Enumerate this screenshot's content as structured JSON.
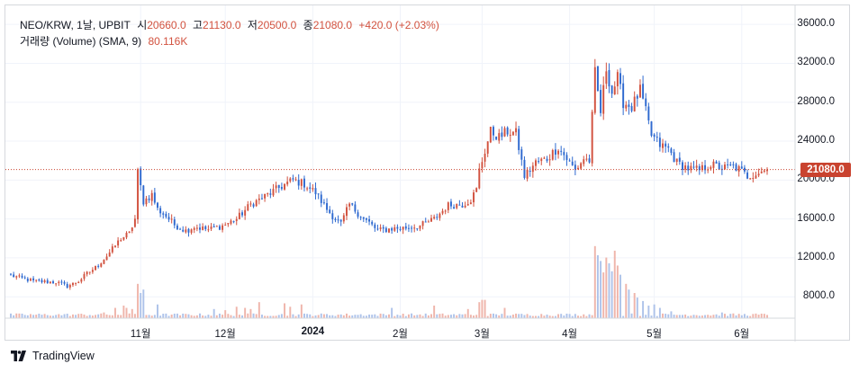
{
  "legend": {
    "symbol": "NEO/KRW, 1날, UPBIT",
    "open_label": "시",
    "open": "20660.0",
    "high_label": "고",
    "high": "21130.0",
    "low_label": "저",
    "low": "20500.0",
    "close_label": "종",
    "close": "21080.0",
    "change": "+420.0 (+2.03%)",
    "volume_label": "거래량 (Volume) (SMA, 9)",
    "volume_value": "80.116K"
  },
  "brand": "TradingView",
  "colors": {
    "up": "#d2523f",
    "down": "#2f6ad0",
    "up_vol": "#efb5ab",
    "down_vol": "#aec3ea",
    "price_line": "#c9432f"
  },
  "chart_data": {
    "type": "candlestick",
    "title": "NEO/KRW, 1날, UPBIT",
    "yticks": [
      8000,
      12000,
      16000,
      20000,
      24000,
      28000,
      32000,
      36000
    ],
    "ytick_labels": [
      "8000.0",
      "12000.0",
      "16000.0",
      "20000.0",
      "24000.0",
      "28000.0",
      "32000.0",
      "36000.0"
    ],
    "ylim": [
      5800,
      37400
    ],
    "current_price": 21080,
    "current_price_label": "21080.0",
    "xticks": [
      {
        "label": "11월",
        "day": 46,
        "bold": false
      },
      {
        "label": "12월",
        "day": 76,
        "bold": false
      },
      {
        "label": "2024",
        "day": 107,
        "bold": true
      },
      {
        "label": "2월",
        "day": 138,
        "bold": false
      },
      {
        "label": "3월",
        "day": 167,
        "bold": false
      },
      {
        "label": "4월",
        "day": 198,
        "bold": false
      },
      {
        "label": "5월",
        "day": 228,
        "bold": false
      },
      {
        "label": "6월",
        "day": 259,
        "bold": false
      }
    ],
    "day_range": [
      0,
      268
    ],
    "close_anchors": [
      [
        0,
        10200
      ],
      [
        8,
        9600
      ],
      [
        16,
        9500
      ],
      [
        20,
        9100
      ],
      [
        24,
        9600
      ],
      [
        27,
        10400
      ],
      [
        30,
        11000
      ],
      [
        34,
        12200
      ],
      [
        36,
        12900
      ],
      [
        39,
        14000
      ],
      [
        42,
        14500
      ],
      [
        44,
        16000
      ],
      [
        45,
        20800
      ],
      [
        47,
        17800
      ],
      [
        50,
        18500
      ],
      [
        52,
        17000
      ],
      [
        55,
        16300
      ],
      [
        58,
        15400
      ],
      [
        62,
        14800
      ],
      [
        65,
        15200
      ],
      [
        70,
        14900
      ],
      [
        75,
        15300
      ],
      [
        80,
        16000
      ],
      [
        85,
        17500
      ],
      [
        90,
        18300
      ],
      [
        95,
        19200
      ],
      [
        100,
        20000
      ],
      [
        104,
        19600
      ],
      [
        108,
        18700
      ],
      [
        112,
        17000
      ],
      [
        115,
        16000
      ],
      [
        117,
        15500
      ],
      [
        120,
        17500
      ],
      [
        125,
        16000
      ],
      [
        127,
        15600
      ],
      [
        130,
        14800
      ],
      [
        135,
        15000
      ],
      [
        140,
        15100
      ],
      [
        145,
        15300
      ],
      [
        150,
        16000
      ],
      [
        155,
        17400
      ],
      [
        160,
        17500
      ],
      [
        163,
        18000
      ],
      [
        165,
        19000
      ],
      [
        166,
        21000
      ],
      [
        168,
        23000
      ],
      [
        170,
        25000
      ],
      [
        173,
        24400
      ],
      [
        176,
        25000
      ],
      [
        179,
        24800
      ],
      [
        182,
        20400
      ],
      [
        186,
        21800
      ],
      [
        190,
        22200
      ],
      [
        194,
        23400
      ],
      [
        196,
        22600
      ],
      [
        198,
        21800
      ],
      [
        200,
        21000
      ],
      [
        203,
        22200
      ],
      [
        205,
        22000
      ],
      [
        207,
        31000
      ],
      [
        209,
        27000
      ],
      [
        211,
        31500
      ],
      [
        213,
        29000
      ],
      [
        215,
        30500
      ],
      [
        217,
        28000
      ],
      [
        220,
        27500
      ],
      [
        223,
        29200
      ],
      [
        225,
        27000
      ],
      [
        227,
        24600
      ],
      [
        230,
        23600
      ],
      [
        233,
        23200
      ],
      [
        236,
        21800
      ],
      [
        240,
        21200
      ],
      [
        244,
        21000
      ],
      [
        248,
        21600
      ],
      [
        252,
        21200
      ],
      [
        256,
        21400
      ],
      [
        258,
        21100
      ],
      [
        261,
        20400
      ],
      [
        264,
        20700
      ],
      [
        268,
        21080
      ]
    ],
    "volume_spikes": [
      [
        33,
        5
      ],
      [
        37,
        9
      ],
      [
        40,
        11
      ],
      [
        41,
        9
      ],
      [
        43,
        8
      ],
      [
        45,
        30
      ],
      [
        46,
        22
      ],
      [
        47,
        25
      ],
      [
        52,
        12
      ],
      [
        72,
        8
      ],
      [
        76,
        7
      ],
      [
        80,
        10
      ],
      [
        83,
        9
      ],
      [
        85,
        8
      ],
      [
        88,
        14
      ],
      [
        97,
        13
      ],
      [
        99,
        10
      ],
      [
        103,
        12
      ],
      [
        135,
        9
      ],
      [
        150,
        11
      ],
      [
        162,
        8
      ],
      [
        166,
        14
      ],
      [
        167,
        16
      ],
      [
        168,
        16
      ],
      [
        175,
        9
      ],
      [
        207,
        63
      ],
      [
        208,
        55
      ],
      [
        209,
        50
      ],
      [
        210,
        40
      ],
      [
        211,
        53
      ],
      [
        212,
        48
      ],
      [
        213,
        41
      ],
      [
        214,
        59
      ],
      [
        215,
        46
      ],
      [
        216,
        38
      ],
      [
        218,
        30
      ],
      [
        219,
        25
      ],
      [
        221,
        22
      ],
      [
        222,
        18
      ],
      [
        224,
        15
      ],
      [
        226,
        11
      ],
      [
        228,
        12
      ],
      [
        230,
        9
      ],
      [
        234,
        6
      ],
      [
        252,
        5
      ]
    ],
    "volume_base": 3
  }
}
